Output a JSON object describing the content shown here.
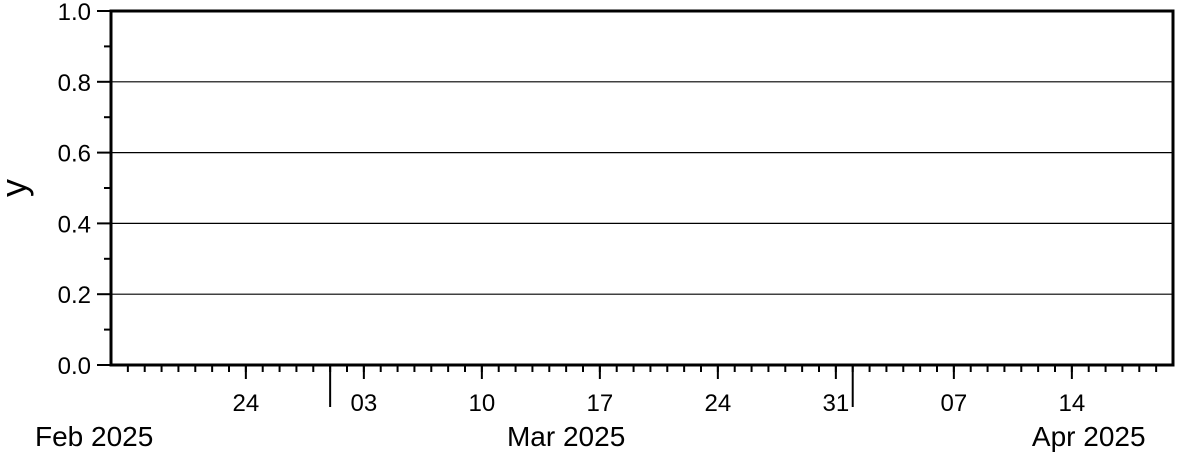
{
  "chart_data": {
    "type": "line",
    "title": "",
    "xlabel": "",
    "ylabel": "y",
    "x_axis_type": "date",
    "xlim": [
      "2025-02-16",
      "2025-04-20"
    ],
    "ylim": [
      0,
      1
    ],
    "grid": true,
    "series": [],
    "y_ticks": [
      {
        "value": 0.0,
        "label": "0.0"
      },
      {
        "value": 0.2,
        "label": "0.2"
      },
      {
        "value": 0.4,
        "label": "0.4"
      },
      {
        "value": 0.6,
        "label": "0.6"
      },
      {
        "value": 0.8,
        "label": "0.8"
      },
      {
        "value": 1.0,
        "label": "1.0"
      }
    ],
    "x_day_ticks": [
      {
        "date": "2025-02-24",
        "label": "24"
      },
      {
        "date": "2025-03-03",
        "label": "03"
      },
      {
        "date": "2025-03-10",
        "label": "10"
      },
      {
        "date": "2025-03-17",
        "label": "17"
      },
      {
        "date": "2025-03-24",
        "label": "24"
      },
      {
        "date": "2025-03-31",
        "label": "31"
      },
      {
        "date": "2025-04-07",
        "label": "07"
      },
      {
        "date": "2025-04-14",
        "label": "14"
      }
    ],
    "x_month_labels": [
      {
        "date": "2025-02-15",
        "label": "Feb 2025"
      },
      {
        "date": "2025-03-15",
        "label": "Mar 2025"
      },
      {
        "date": "2025-04-15",
        "label": "Apr 2025"
      }
    ],
    "x_month_boundaries": [
      "2025-03-01",
      "2025-04-01"
    ]
  }
}
